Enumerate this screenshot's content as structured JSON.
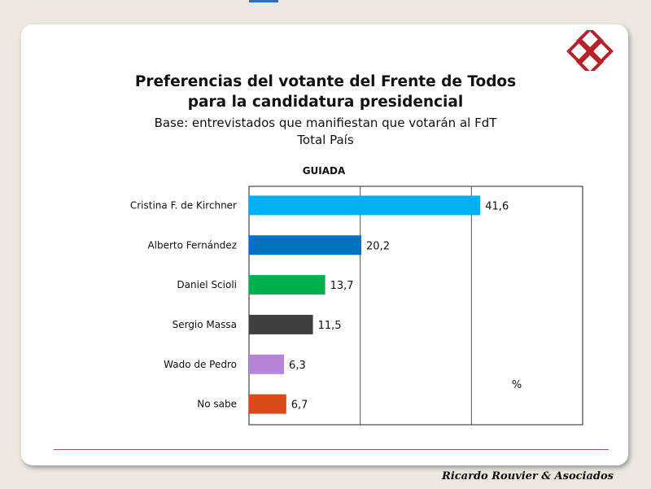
{
  "chart_data": {
    "type": "bar",
    "orientation": "horizontal",
    "title": "Preferencias del votante del Frente de Todos",
    "title_line2": "para la candidatura presidencial",
    "subtitle": "Base: entrevistados que manifiestan que votarán al FdT",
    "subtitle_line2": "Total País",
    "panel_label": "GUIADA",
    "unit_label": "%",
    "categories": [
      "Cristina F. de Kirchner",
      "Alberto Fernández",
      "Daniel Scioli",
      "Sergio Massa",
      "Wado de Pedro",
      "No sabe"
    ],
    "values": [
      41.6,
      20.2,
      13.7,
      11.5,
      6.3,
      6.7
    ],
    "value_labels": [
      "41,6",
      "20,2",
      "13,7",
      "11,5",
      "6,3",
      "6,7"
    ],
    "colors": [
      "#00b0f0",
      "#0070c0",
      "#00b050",
      "#404040",
      "#b584d8",
      "#d84a1a"
    ],
    "xlim": [
      0,
      60
    ],
    "grid_values": [
      20,
      40
    ],
    "grid": true,
    "legend": "none"
  },
  "footer": {
    "credit": "Ricardo Rouvier & Asociados"
  }
}
